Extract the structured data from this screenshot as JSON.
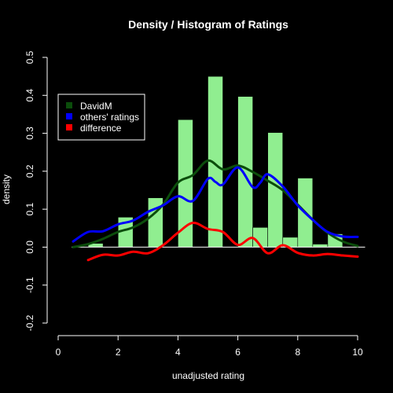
{
  "chart_data": {
    "type": "bar",
    "title": "Density / Histogram of Ratings",
    "xlabel": "unadjusted rating",
    "ylabel": "density",
    "xlim": [
      0,
      10
    ],
    "ylim": [
      -0.2,
      0.5
    ],
    "x_ticks": [
      0,
      2,
      4,
      6,
      8,
      10
    ],
    "x_tick_labels": [
      "0",
      "2",
      "4",
      "6",
      "8",
      "10"
    ],
    "y_ticks": [
      -0.2,
      -0.1,
      0.0,
      0.1,
      0.2,
      0.3,
      0.4,
      0.5
    ],
    "y_tick_labels": [
      "-0.2",
      "-0.1",
      "0.0",
      "0.1",
      "0.2",
      "0.3",
      "0.4",
      "0.5"
    ],
    "grid": false,
    "legend_position": "top-left",
    "background_color": "#000000",
    "bar_color": "#90ee90",
    "histogram": {
      "bin_width": 0.5,
      "bins": [
        {
          "x0": 0.5,
          "value": 0.0
        },
        {
          "x0": 1.0,
          "value": 0.01
        },
        {
          "x0": 1.5,
          "value": 0.0
        },
        {
          "x0": 2.0,
          "value": 0.079
        },
        {
          "x0": 2.5,
          "value": 0.0
        },
        {
          "x0": 3.0,
          "value": 0.13
        },
        {
          "x0": 3.5,
          "value": 0.0
        },
        {
          "x0": 4.0,
          "value": 0.336
        },
        {
          "x0": 4.5,
          "value": 0.0
        },
        {
          "x0": 5.0,
          "value": 0.45
        },
        {
          "x0": 5.5,
          "value": 0.0
        },
        {
          "x0": 6.0,
          "value": 0.397
        },
        {
          "x0": 6.5,
          "value": 0.052
        },
        {
          "x0": 7.0,
          "value": 0.302
        },
        {
          "x0": 7.5,
          "value": 0.026
        },
        {
          "x0": 8.0,
          "value": 0.182
        },
        {
          "x0": 8.5,
          "value": 0.008
        },
        {
          "x0": 9.0,
          "value": 0.035
        },
        {
          "x0": 9.5,
          "value": 0.0
        }
      ]
    },
    "series": [
      {
        "name": "DavidM",
        "color": "#0b4d0b",
        "x": [
          0.5,
          1.0,
          1.5,
          2.0,
          2.5,
          3.0,
          3.5,
          4.0,
          4.5,
          5.0,
          5.5,
          6.0,
          6.5,
          7.0,
          7.5,
          8.0,
          8.5,
          9.0,
          9.5,
          10.0
        ],
        "y": [
          0.0,
          0.008,
          0.022,
          0.04,
          0.052,
          0.075,
          0.112,
          0.17,
          0.19,
          0.228,
          0.205,
          0.215,
          0.198,
          0.175,
          0.15,
          0.112,
          0.072,
          0.038,
          0.015,
          0.003
        ]
      },
      {
        "name": "others' ratings",
        "color": "#0000ff",
        "x": [
          0.5,
          1.0,
          1.5,
          2.0,
          2.5,
          3.0,
          3.5,
          4.0,
          4.5,
          5.0,
          5.25,
          5.5,
          6.0,
          6.5,
          6.75,
          7.0,
          7.5,
          8.0,
          8.5,
          9.0,
          9.5,
          10.0
        ],
        "y": [
          0.015,
          0.04,
          0.042,
          0.06,
          0.07,
          0.093,
          0.11,
          0.134,
          0.122,
          0.18,
          0.172,
          0.165,
          0.21,
          0.158,
          0.17,
          0.192,
          0.16,
          0.11,
          0.072,
          0.04,
          0.028,
          0.027
        ]
      },
      {
        "name": "difference",
        "color": "#ff0000",
        "x": [
          1.0,
          1.5,
          2.0,
          2.5,
          3.0,
          3.5,
          4.0,
          4.5,
          5.0,
          5.5,
          6.0,
          6.5,
          7.0,
          7.5,
          8.0,
          8.5,
          9.0,
          9.5,
          10.0
        ],
        "y": [
          -0.034,
          -0.02,
          -0.022,
          -0.012,
          -0.016,
          0.005,
          0.038,
          0.064,
          0.048,
          0.04,
          0.006,
          0.024,
          -0.016,
          0.005,
          -0.015,
          -0.022,
          -0.018,
          -0.022,
          -0.025
        ]
      }
    ]
  }
}
